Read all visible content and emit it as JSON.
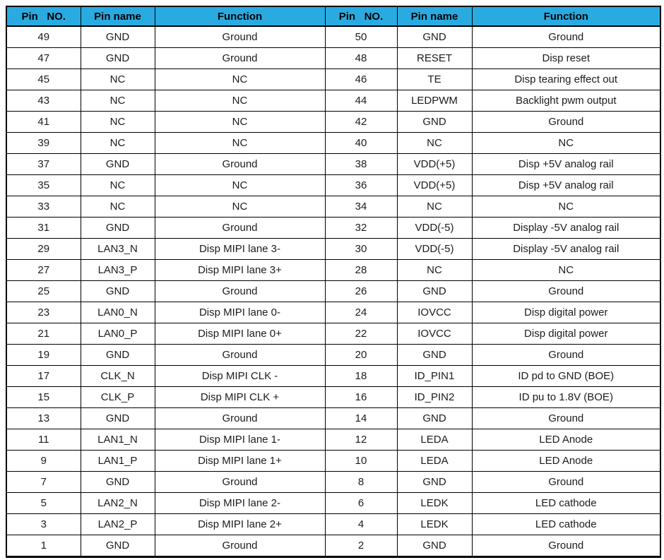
{
  "colors": {
    "header_bg": "#29ABE2",
    "border": "#000000",
    "text": "#1c1c1c"
  },
  "table": {
    "headers": [
      "Pin   NO.",
      "Pin name",
      "Function",
      "Pin   NO.",
      "Pin name",
      "Function"
    ],
    "rows": [
      [
        "49",
        "GND",
        "Ground",
        "50",
        "GND",
        "Ground"
      ],
      [
        "47",
        "GND",
        "Ground",
        "48",
        "RESET",
        "Disp reset"
      ],
      [
        "45",
        "NC",
        "NC",
        "46",
        "TE",
        "Disp tearing effect out"
      ],
      [
        "43",
        "NC",
        "NC",
        "44",
        "LEDPWM",
        "Backlight pwm output"
      ],
      [
        "41",
        "NC",
        "NC",
        "42",
        "GND",
        "Ground"
      ],
      [
        "39",
        "NC",
        "NC",
        "40",
        "NC",
        "NC"
      ],
      [
        "37",
        "GND",
        "Ground",
        "38",
        "VDD(+5)",
        "Disp +5V analog rail"
      ],
      [
        "35",
        "NC",
        "NC",
        "36",
        "VDD(+5)",
        "Disp +5V analog rail"
      ],
      [
        "33",
        "NC",
        "NC",
        "34",
        "NC",
        "NC"
      ],
      [
        "31",
        "GND",
        "Ground",
        "32",
        "VDD(-5)",
        "Display -5V analog rail"
      ],
      [
        "29",
        "LAN3_N",
        "Disp MIPI lane 3-",
        "30",
        "VDD(-5)",
        "Display -5V analog rail"
      ],
      [
        "27",
        "LAN3_P",
        "Disp MIPI lane 3+",
        "28",
        "NC",
        "NC"
      ],
      [
        "25",
        "GND",
        "Ground",
        "26",
        "GND",
        "Ground"
      ],
      [
        "23",
        "LAN0_N",
        "Disp MIPI lane 0-",
        "24",
        "IOVCC",
        "Disp digital power"
      ],
      [
        "21",
        "LAN0_P",
        "Disp MIPI lane 0+",
        "22",
        "IOVCC",
        "Disp digital power"
      ],
      [
        "19",
        "GND",
        "Ground",
        "20",
        "GND",
        "Ground"
      ],
      [
        "17",
        "CLK_N",
        "Disp MIPI CLK -",
        "18",
        "ID_PIN1",
        "ID pd to GND (BOE)"
      ],
      [
        "15",
        "CLK_P",
        "Disp MIPI CLK +",
        "16",
        "ID_PIN2",
        "ID pu to 1.8V (BOE)"
      ],
      [
        "13",
        "GND",
        "Ground",
        "14",
        "GND",
        "Ground"
      ],
      [
        "11",
        "LAN1_N",
        "Disp MIPI lane 1-",
        "12",
        "LEDA",
        "LED Anode"
      ],
      [
        "9",
        "LAN1_P",
        "Disp MIPI lane 1+",
        "10",
        "LEDA",
        "LED Anode"
      ],
      [
        "7",
        "GND",
        "Ground",
        "8",
        "GND",
        "Ground"
      ],
      [
        "5",
        "LAN2_N",
        "Disp MIPI lane 2-",
        "6",
        "LEDK",
        "LED cathode"
      ],
      [
        "3",
        "LAN2_P",
        "Disp MIPI lane 2+",
        "4",
        "LEDK",
        "LED cathode"
      ],
      [
        "1",
        "GND",
        "Ground",
        "2",
        "GND",
        "Ground"
      ]
    ]
  }
}
